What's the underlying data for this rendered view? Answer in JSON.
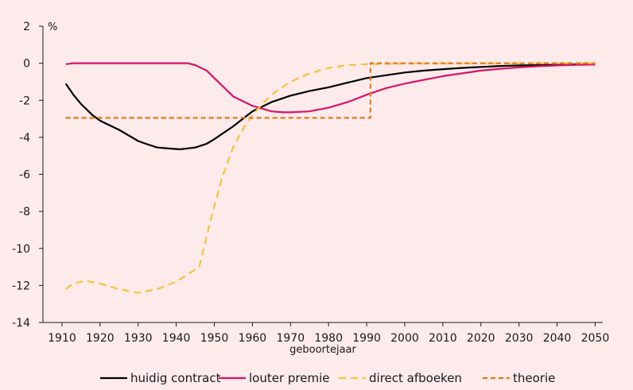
{
  "chart_data": {
    "type": "line",
    "xlabel": "geboortejaar",
    "ylabel": "%",
    "xlim": [
      1905,
      2052
    ],
    "ylim": [
      -14,
      2
    ],
    "xticks": [
      1910,
      1920,
      1930,
      1940,
      1950,
      1960,
      1970,
      1980,
      1990,
      2000,
      2010,
      2020,
      2030,
      2040,
      2050
    ],
    "yticks": [
      2,
      0,
      -2,
      -4,
      -6,
      -8,
      -10,
      -12,
      -14
    ],
    "grid": false,
    "legend_position": "bottom",
    "series": [
      {
        "name": "huidig contract",
        "color": "#000000",
        "style": "solid",
        "x": [
          1911,
          1913,
          1915,
          1918,
          1920,
          1925,
          1930,
          1932,
          1935,
          1938,
          1941,
          1945,
          1948,
          1950,
          1955,
          1960,
          1965,
          1970,
          1975,
          1980,
          1985,
          1990,
          1995,
          2000,
          2005,
          2010,
          2015,
          2020,
          2025,
          2030,
          2035,
          2040,
          2045,
          2050
        ],
        "y": [
          -1.1,
          -1.7,
          -2.2,
          -2.8,
          -3.1,
          -3.6,
          -4.2,
          -4.35,
          -4.55,
          -4.6,
          -4.65,
          -4.55,
          -4.35,
          -4.1,
          -3.4,
          -2.6,
          -2.1,
          -1.75,
          -1.5,
          -1.3,
          -1.05,
          -0.8,
          -0.65,
          -0.5,
          -0.4,
          -0.32,
          -0.25,
          -0.2,
          -0.15,
          -0.12,
          -0.1,
          -0.08,
          -0.06,
          -0.05
        ]
      },
      {
        "name": "louter premie",
        "color": "#d6136b",
        "style": "solid",
        "x": [
          1911,
          1913,
          1920,
          1930,
          1940,
          1943,
          1945,
          1948,
          1950,
          1955,
          1960,
          1965,
          1968,
          1970,
          1975,
          1980,
          1985,
          1990,
          1995,
          2000,
          2005,
          2010,
          2015,
          2020,
          2025,
          2030,
          2035,
          2040,
          2045,
          2050
        ],
        "y": [
          -0.05,
          0,
          0,
          0,
          0,
          0,
          -0.1,
          -0.4,
          -0.8,
          -1.8,
          -2.3,
          -2.6,
          -2.65,
          -2.65,
          -2.6,
          -2.4,
          -2.1,
          -1.7,
          -1.35,
          -1.1,
          -0.9,
          -0.7,
          -0.55,
          -0.4,
          -0.3,
          -0.22,
          -0.16,
          -0.12,
          -0.09,
          -0.07
        ]
      },
      {
        "name": "direct afboeken",
        "color": "#f8c33a",
        "style": "dashed",
        "x": [
          1911,
          1913,
          1916,
          1920,
          1925,
          1930,
          1935,
          1940,
          1943,
          1946,
          1949,
          1952,
          1955,
          1958,
          1960,
          1963,
          1966,
          1970,
          1975,
          1980,
          1985,
          1990,
          2000,
          2010,
          2020,
          2030,
          2040,
          2050
        ],
        "y": [
          -12.2,
          -11.9,
          -11.75,
          -11.9,
          -12.2,
          -12.4,
          -12.2,
          -11.8,
          -11.4,
          -11.0,
          -8.5,
          -6.2,
          -4.5,
          -3.4,
          -2.8,
          -2.1,
          -1.55,
          -1.0,
          -0.55,
          -0.25,
          -0.1,
          -0.05,
          -0.02,
          -0.02,
          -0.01,
          -0.01,
          0,
          0
        ]
      },
      {
        "name": "theorie",
        "color": "#e07b16",
        "style": "dashed",
        "x": [
          1911,
          1923,
          1933,
          1943,
          1953,
          1963,
          1973,
          1983,
          1991,
          1991,
          2000,
          2010,
          2020,
          2030,
          2040,
          2050
        ],
        "y": [
          -2.95,
          -2.95,
          -2.95,
          -2.95,
          -2.95,
          -2.95,
          -2.95,
          -2.95,
          -2.95,
          0,
          0,
          0,
          0,
          0,
          0,
          0
        ]
      }
    ]
  }
}
